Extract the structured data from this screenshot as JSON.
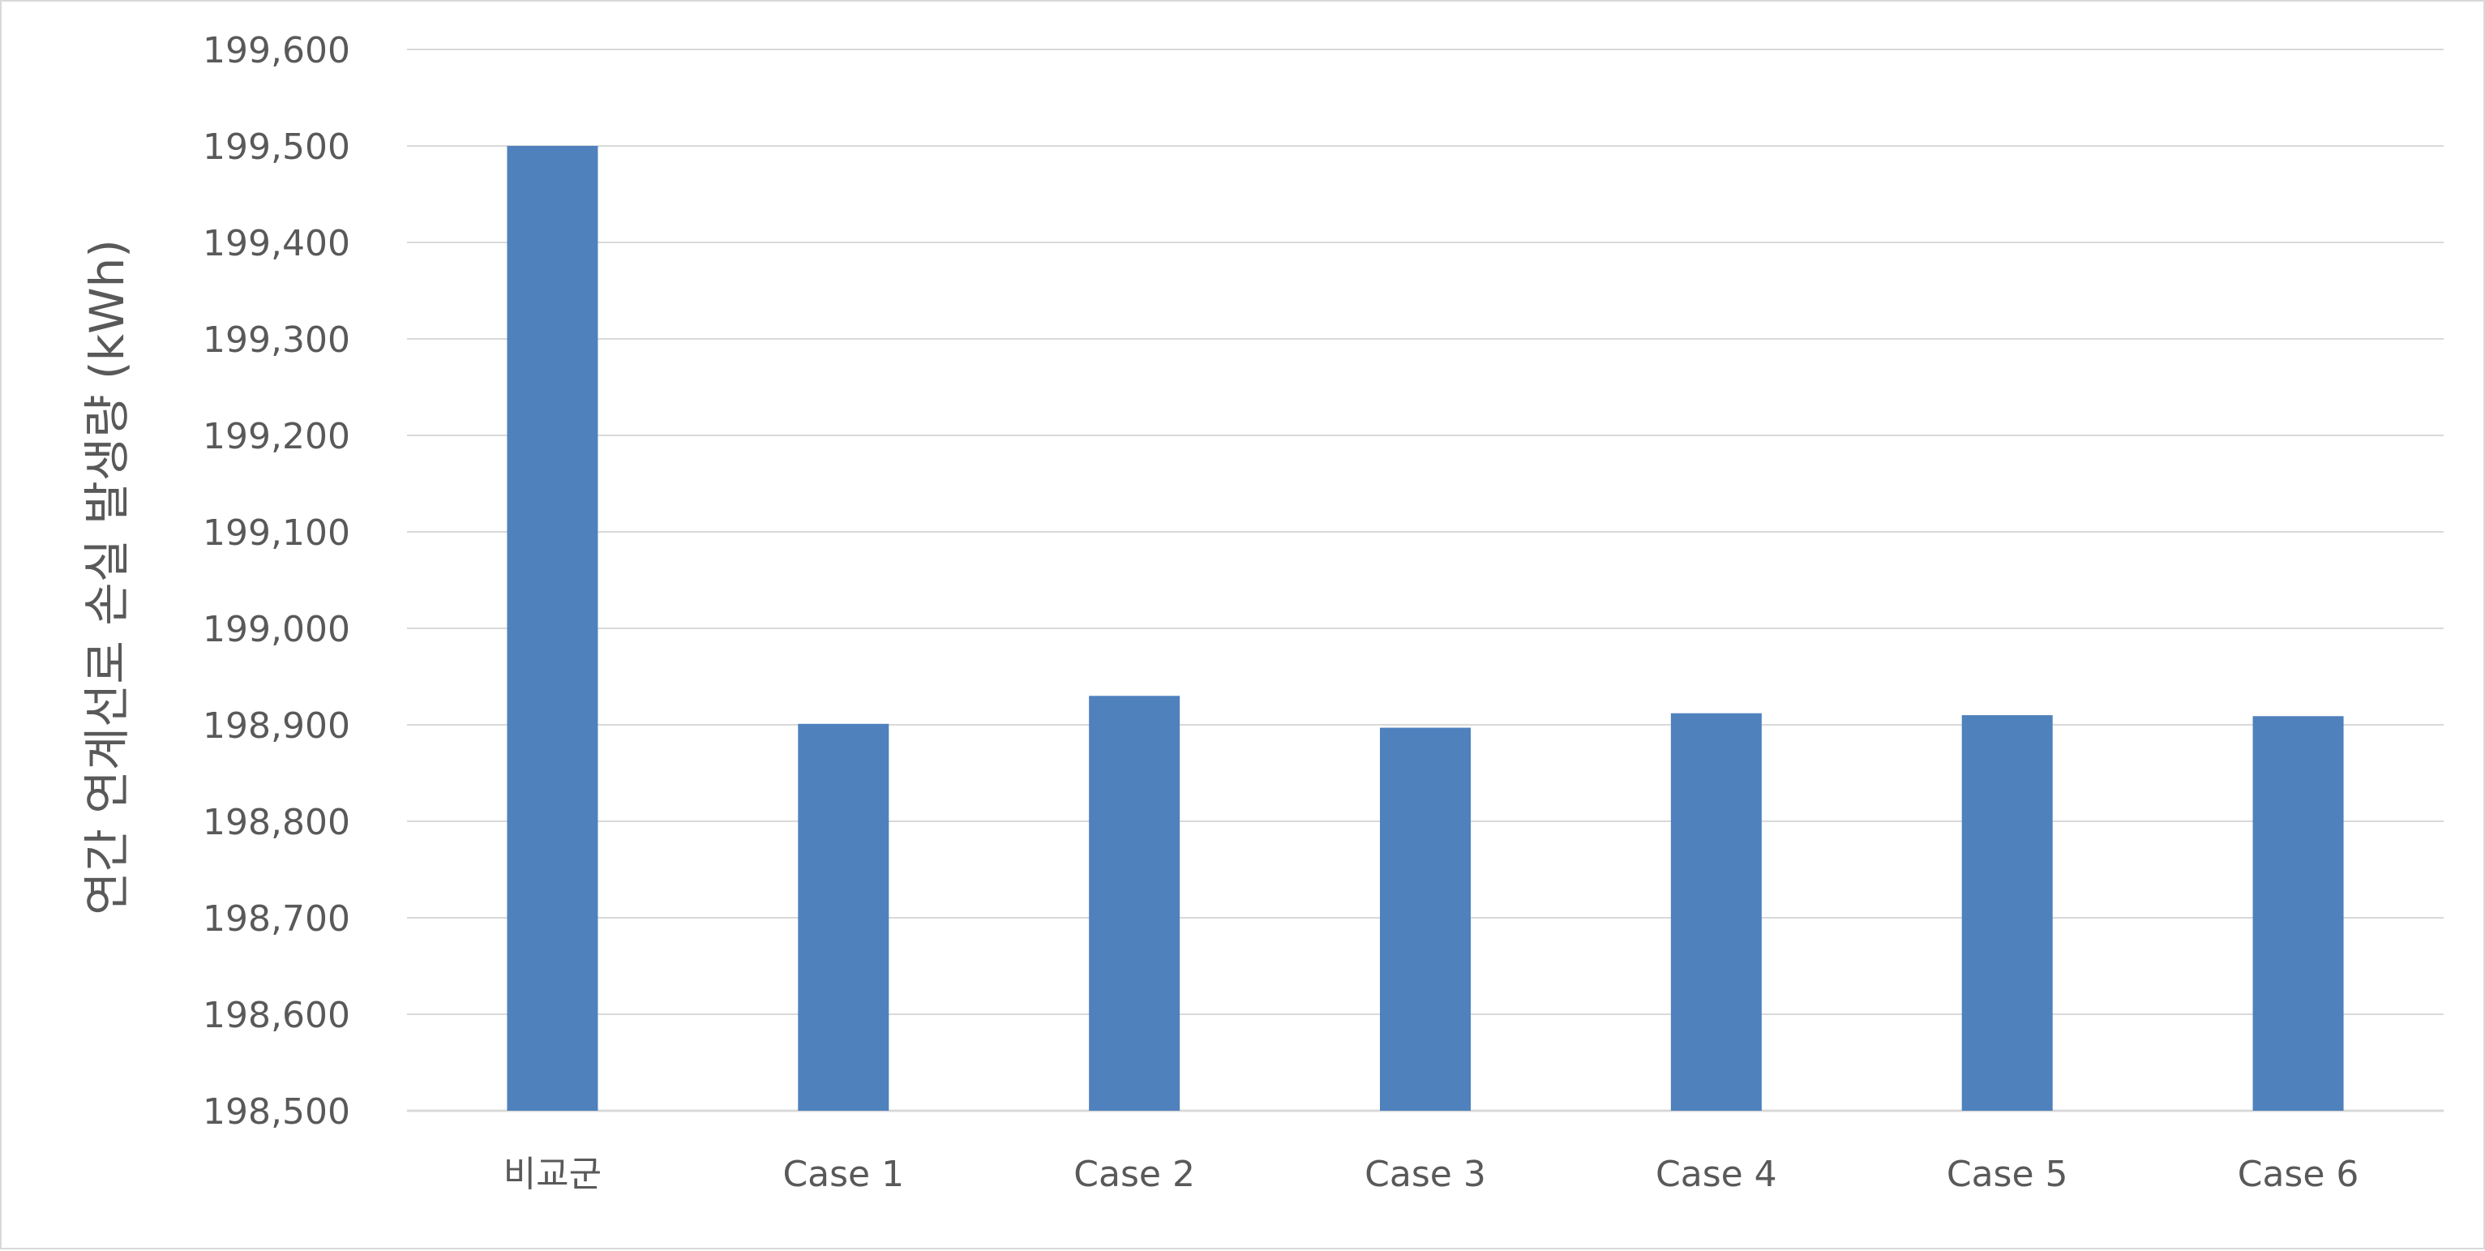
{
  "chart_data": {
    "type": "bar",
    "title": "",
    "xlabel": "",
    "ylabel": "연간 연계선로 손실 발생량 (kWh)",
    "categories": [
      "비교군",
      "Case 1",
      "Case 2",
      "Case 3",
      "Case 4",
      "Case 5",
      "Case 6"
    ],
    "values": [
      199500,
      198901,
      198930,
      198897,
      198912,
      198910,
      198909
    ],
    "ylim": [
      198500,
      199600
    ],
    "yticks": [
      198500,
      198600,
      198700,
      198800,
      198900,
      199000,
      199100,
      199200,
      199300,
      199400,
      199500,
      199600
    ],
    "ytick_labels": [
      "198,500",
      "198,600",
      "198,700",
      "198,800",
      "198,900",
      "199,000",
      "199,100",
      "199,200",
      "199,300",
      "199,400",
      "199,500",
      "199,600"
    ],
    "grid": true,
    "legend": "none",
    "colors": {
      "bar": "#4f81bd",
      "grid": "#d9d9d9",
      "text": "#595959",
      "border": "#d9d9d9"
    }
  }
}
